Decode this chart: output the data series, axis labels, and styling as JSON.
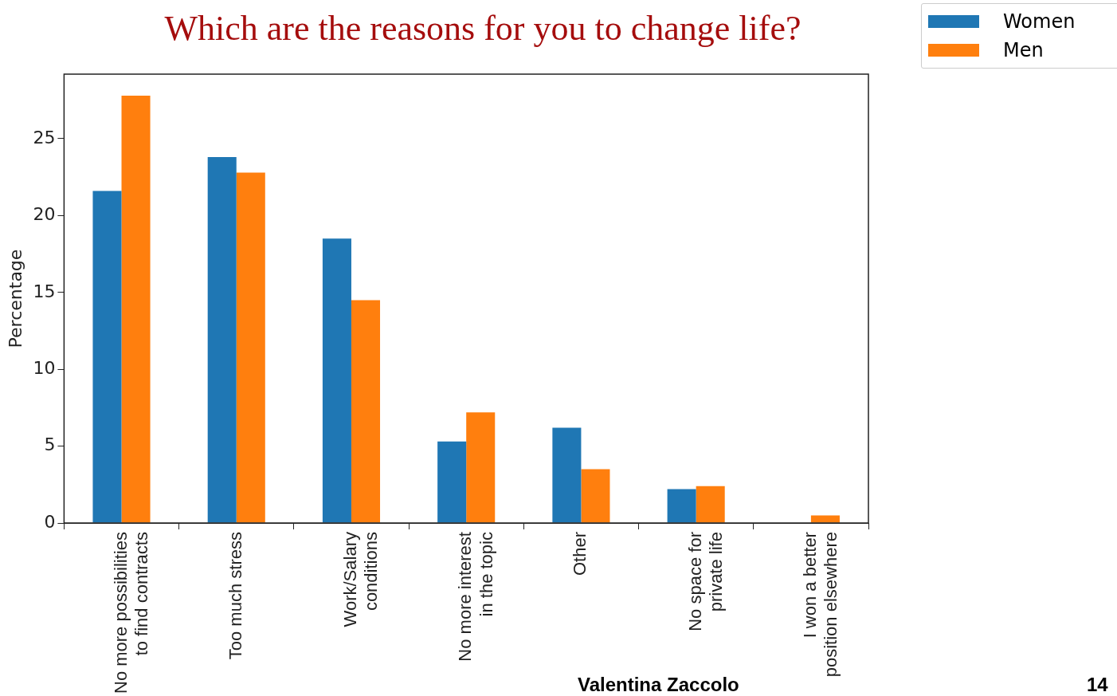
{
  "chart_data": {
    "type": "bar",
    "title": "Which are the reasons for you to change life?",
    "ylabel": "Percentage",
    "categories": [
      "No more possibilities\nto find contracts",
      "Too much stress",
      "Work/Salary\nconditions",
      "No more interest\nin the topic",
      "Other",
      "No space for\nprivate life",
      "I won a better\nposition elsewhere"
    ],
    "series": [
      {
        "name": "Women",
        "color": "#1f77b4",
        "values": [
          21.6,
          23.8,
          18.5,
          5.3,
          6.2,
          2.2,
          0
        ]
      },
      {
        "name": "Men",
        "color": "#ff7f0e",
        "values": [
          27.8,
          22.8,
          14.5,
          7.2,
          3.5,
          2.4,
          0.5
        ]
      }
    ],
    "ylim": [
      0,
      29.2
    ],
    "yticks": [
      0,
      5,
      10,
      15,
      20,
      25
    ],
    "grid": false,
    "legend": "top right",
    "annotations": [
      "Valentina Zaccolo",
      "14"
    ]
  }
}
